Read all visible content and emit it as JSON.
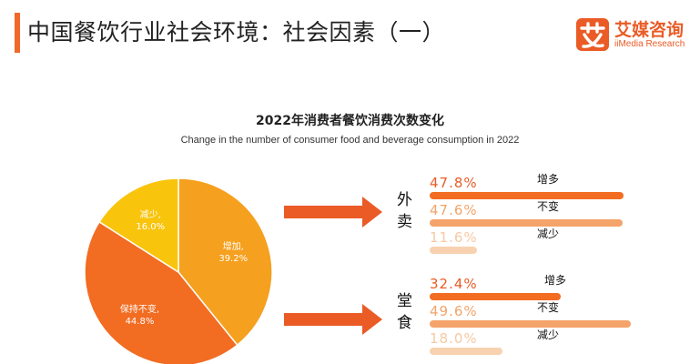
{
  "header": {
    "title": "中国餐饮行业社会环境：社会因素（一）",
    "logo_cn": "艾媒咨询",
    "logo_en": "iiMedia Research",
    "logo_glyph": "艾"
  },
  "colors": {
    "accent": "#f0692a",
    "increase": "#f5a01e",
    "same": "#f26c21",
    "decrease": "#f9c40c",
    "bar_increase": "#f26c21",
    "bar_same": "#f4a36a",
    "bar_decrease": "#f8d2b0"
  },
  "chart_data": [
    {
      "type": "pie",
      "title": "2022年消费者餐饮消费次数变化",
      "subtitle": "Change in the number of consumer food and beverage consumption in 2022",
      "slices": [
        {
          "label": "增加",
          "value": 39.2,
          "text": "39.2%"
        },
        {
          "label": "保持不变",
          "value": 44.8,
          "text": "44.8%"
        },
        {
          "label": "减少",
          "value": 16.0,
          "text": "16.0%"
        }
      ]
    },
    {
      "type": "bar",
      "orientation": "horizontal",
      "groups": [
        {
          "name": "外卖",
          "items": [
            {
              "label": "增多",
              "value": 47.8,
              "text": "47.8%"
            },
            {
              "label": "不变",
              "value": 47.6,
              "text": "47.6%"
            },
            {
              "label": "减少",
              "value": 11.6,
              "text": "11.6%"
            }
          ]
        },
        {
          "name": "堂食",
          "items": [
            {
              "label": "增多",
              "value": 32.4,
              "text": "32.4%"
            },
            {
              "label": "不变",
              "value": 49.6,
              "text": "49.6%"
            },
            {
              "label": "减少",
              "value": 18.0,
              "text": "18.0%"
            }
          ]
        }
      ]
    }
  ]
}
